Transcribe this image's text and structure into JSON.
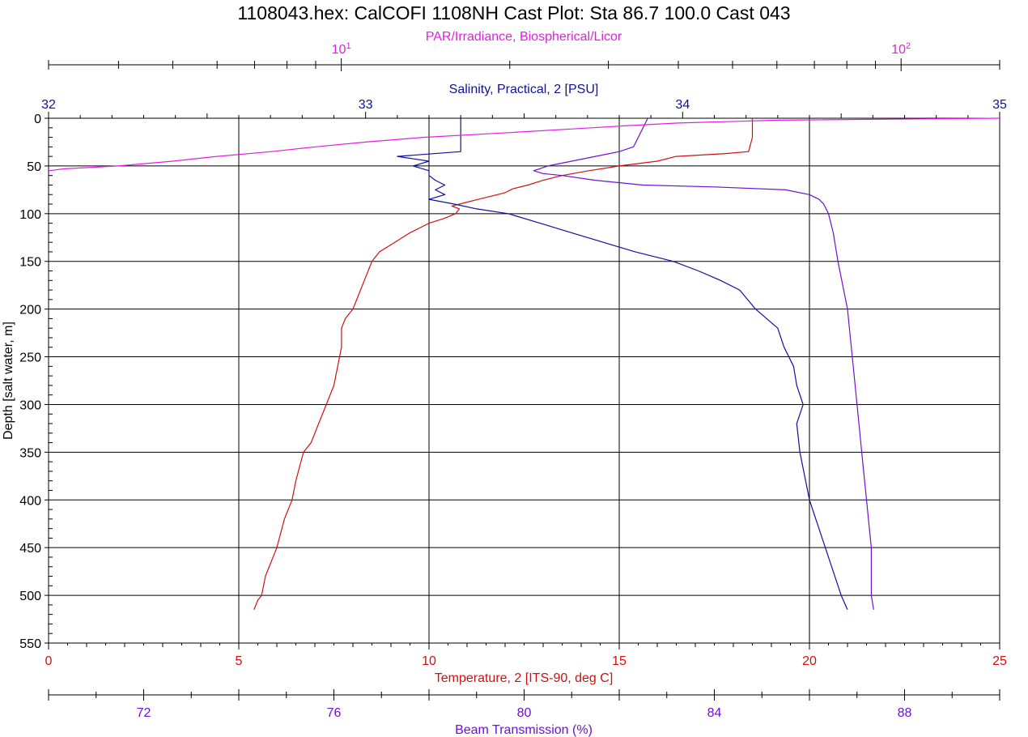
{
  "chart_data": {
    "type": "line",
    "title": "1108043.hex: CalCOFI 1108NH Cast Plot: Sta 86.7 100.0  Cast 043",
    "colors": {
      "par": "#e020e0",
      "salinity": "#1010a0",
      "temperature": "#d01010",
      "beam": "#7010d0",
      "axis": "#000000",
      "grid": "#000000"
    },
    "y_axis": {
      "label": "Depth [salt water, m]",
      "range": [
        0,
        550
      ],
      "reversed": true,
      "ticks": [
        0,
        50,
        100,
        150,
        200,
        250,
        300,
        350,
        400,
        450,
        500,
        550
      ]
    },
    "axes": {
      "par": {
        "label": "PAR/Irradiance, Biospherical/Licor",
        "scale": "log",
        "range": [
          3,
          150
        ],
        "tick_labels": [
          {
            "value": 10,
            "base": "10",
            "exp": "1"
          },
          {
            "value": 100,
            "base": "10",
            "exp": "2"
          }
        ],
        "position": "top"
      },
      "salinity": {
        "label": "Salinity, Practical, 2 [PSU]",
        "range": [
          32,
          35
        ],
        "ticks": [
          "32",
          "33",
          "34",
          "35"
        ],
        "position": "top"
      },
      "temperature": {
        "label": "Temperature, 2 [ITS-90, deg C]",
        "range": [
          0,
          25
        ],
        "ticks": [
          "0",
          "5",
          "10",
          "15",
          "20",
          "25"
        ],
        "position": "bottom"
      },
      "beam": {
        "label": "Beam Transmission (%)",
        "range": [
          70,
          90
        ],
        "ticks": [
          "72",
          "76",
          "80",
          "84",
          "88"
        ],
        "position": "bottom"
      }
    },
    "grid": true,
    "series": [
      {
        "key": "temperature",
        "x_axis": "temperature",
        "depth": [
          0,
          5,
          20,
          35,
          37,
          40,
          45,
          50,
          55,
          60,
          65,
          70,
          74,
          78,
          80,
          85,
          90,
          92,
          95,
          100,
          105,
          110,
          120,
          130,
          140,
          150,
          160,
          170,
          180,
          190,
          200,
          210,
          220,
          240,
          260,
          280,
          300,
          320,
          340,
          350,
          380,
          400,
          420,
          450,
          480,
          500,
          505,
          515
        ],
        "values": [
          18.5,
          18.5,
          18.5,
          18.4,
          17.8,
          16.5,
          16.0,
          15.0,
          14.2,
          13.5,
          13.0,
          12.6,
          12.2,
          12.0,
          11.8,
          11.3,
          10.8,
          10.6,
          10.8,
          10.7,
          10.4,
          10.0,
          9.5,
          9.1,
          8.7,
          8.5,
          8.4,
          8.3,
          8.2,
          8.1,
          8.0,
          7.8,
          7.7,
          7.7,
          7.6,
          7.5,
          7.3,
          7.1,
          6.9,
          6.7,
          6.5,
          6.4,
          6.2,
          6.0,
          5.7,
          5.6,
          5.5,
          5.4
        ]
      },
      {
        "key": "salinity",
        "x_axis": "salinity",
        "depth": [
          0,
          20,
          35,
          40,
          45,
          50,
          55,
          60,
          65,
          70,
          75,
          80,
          85,
          90,
          95,
          100,
          110,
          120,
          130,
          140,
          150,
          160,
          170,
          180,
          200,
          220,
          240,
          260,
          280,
          300,
          320,
          350,
          400,
          450,
          500,
          515
        ],
        "values": [
          33.3,
          33.3,
          33.3,
          33.1,
          33.2,
          33.15,
          33.2,
          33.2,
          33.22,
          33.25,
          33.22,
          33.25,
          33.2,
          33.28,
          33.35,
          33.45,
          33.55,
          33.65,
          33.75,
          33.85,
          33.97,
          34.05,
          34.12,
          34.18,
          34.23,
          34.3,
          34.32,
          34.35,
          34.36,
          34.38,
          34.36,
          34.37,
          34.4,
          34.45,
          34.5,
          34.52
        ]
      },
      {
        "key": "beam",
        "x_axis": "beam",
        "depth": [
          0,
          10,
          20,
          30,
          35,
          40,
          45,
          50,
          55,
          58,
          60,
          65,
          70,
          72,
          75,
          80,
          85,
          90,
          100,
          120,
          150,
          200,
          250,
          300,
          350,
          400,
          450,
          500,
          515
        ],
        "values": [
          82.6,
          82.5,
          82.4,
          82.3,
          82.0,
          81.5,
          81.0,
          80.5,
          80.2,
          80.4,
          80.8,
          81.5,
          82.5,
          84.0,
          85.5,
          86.0,
          86.2,
          86.3,
          86.4,
          86.5,
          86.6,
          86.8,
          86.9,
          87.0,
          87.1,
          87.2,
          87.3,
          87.3,
          87.35
        ]
      },
      {
        "key": "par",
        "x_axis": "par",
        "depth": [
          0,
          2,
          5,
          8,
          10,
          15,
          20,
          25,
          30,
          35,
          40,
          45,
          50,
          53,
          55
        ],
        "values": [
          150,
          60,
          40,
          32,
          28,
          20,
          14,
          11,
          9,
          7.5,
          6.0,
          5.0,
          4.0,
          3.2,
          3.0
        ]
      }
    ]
  }
}
